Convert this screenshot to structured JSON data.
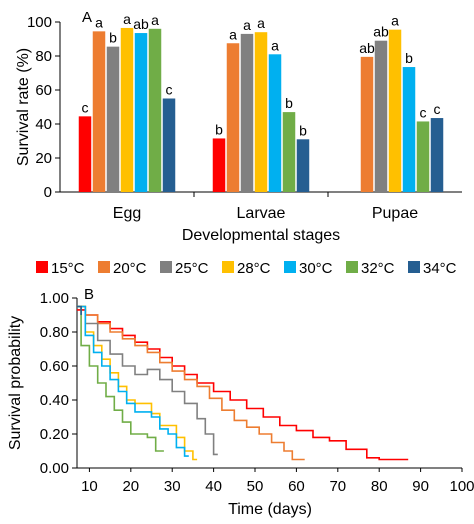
{
  "chart_data": [
    {
      "type": "bar",
      "panel_label": "A",
      "categories": [
        "Egg",
        "Larvae",
        "Pupae"
      ],
      "xlabel": "Developmental stages",
      "ylabel": "Survival rate (%)",
      "ylim": [
        0,
        100
      ],
      "yticks": [
        0,
        20,
        40,
        60,
        80,
        100
      ],
      "series": [
        {
          "name": "15°C",
          "color": "#ff0000",
          "values": [
            44.5,
            31.5,
            null
          ],
          "letters": [
            "c",
            "b",
            ""
          ]
        },
        {
          "name": "20°C",
          "color": "#ed7d31",
          "values": [
            94.5,
            87.5,
            79.5
          ],
          "letters": [
            "a",
            "a",
            "ab"
          ]
        },
        {
          "name": "25°C",
          "color": "#808080",
          "values": [
            85.5,
            93.0,
            89.0
          ],
          "letters": [
            "b",
            "a",
            "ab"
          ]
        },
        {
          "name": "28°C",
          "color": "#ffc000",
          "values": [
            96.5,
            94.0,
            95.5
          ],
          "letters": [
            "a",
            "a",
            "a"
          ]
        },
        {
          "name": "30°C",
          "color": "#00b0f0",
          "values": [
            93.5,
            81.0,
            73.5
          ],
          "letters": [
            "ab",
            "a",
            "b"
          ]
        },
        {
          "name": "32°C",
          "color": "#70ad47",
          "values": [
            96.0,
            47.0,
            41.5
          ],
          "letters": [
            "a",
            "b",
            "c"
          ]
        },
        {
          "name": "34°C",
          "color": "#255e91",
          "values": [
            55.0,
            31.0,
            43.5
          ],
          "letters": [
            "c",
            "b",
            "c"
          ]
        }
      ]
    },
    {
      "type": "line",
      "panel_label": "B",
      "step": true,
      "xlabel": "Time (days)",
      "ylabel": "Survival probability",
      "xlim": [
        7,
        100
      ],
      "ylim": [
        0,
        1
      ],
      "xticks": [
        10,
        20,
        30,
        40,
        50,
        60,
        70,
        80,
        90,
        100
      ],
      "yticks": [
        "0.00",
        "0.20",
        "0.40",
        "0.60",
        "0.80",
        "1.00"
      ],
      "legend_position": "top",
      "series": [
        {
          "name": "15°C",
          "color": "#ff0000",
          "x": [
            7,
            9,
            12,
            15,
            18,
            21,
            24,
            27,
            30,
            33,
            36,
            40,
            44,
            48,
            52,
            56,
            60,
            64,
            68,
            72,
            77,
            80,
            87
          ],
          "y": [
            0.93,
            0.9,
            0.86,
            0.82,
            0.78,
            0.74,
            0.7,
            0.65,
            0.6,
            0.55,
            0.5,
            0.45,
            0.4,
            0.35,
            0.3,
            0.25,
            0.22,
            0.18,
            0.16,
            0.11,
            0.06,
            0.05,
            0.05
          ]
        },
        {
          "name": "20°C",
          "color": "#ed7d31",
          "x": [
            7,
            9,
            12,
            15,
            18,
            21,
            24,
            27,
            30,
            33,
            36,
            39,
            42,
            45,
            48,
            51,
            54,
            57,
            59,
            62
          ],
          "y": [
            0.95,
            0.9,
            0.85,
            0.8,
            0.76,
            0.72,
            0.68,
            0.62,
            0.57,
            0.52,
            0.48,
            0.41,
            0.34,
            0.28,
            0.24,
            0.2,
            0.15,
            0.1,
            0.05,
            0.05
          ]
        },
        {
          "name": "25°C",
          "color": "#808080",
          "x": [
            7,
            9,
            12,
            15,
            18,
            21,
            24,
            27,
            30,
            33,
            36,
            38,
            40,
            41
          ],
          "y": [
            0.95,
            0.85,
            0.75,
            0.67,
            0.6,
            0.55,
            0.58,
            0.52,
            0.45,
            0.38,
            0.29,
            0.2,
            0.08,
            0.08
          ]
        },
        {
          "name": "28°C",
          "color": "#ffc000",
          "x": [
            7,
            9,
            11,
            13,
            15,
            17,
            19,
            21,
            23,
            25,
            27,
            29,
            31,
            33,
            35,
            36
          ],
          "y": [
            0.95,
            0.8,
            0.72,
            0.64,
            0.56,
            0.48,
            0.4,
            0.38,
            0.38,
            0.32,
            0.25,
            0.25,
            0.18,
            0.1,
            0.05,
            0.05
          ]
        },
        {
          "name": "30°C",
          "color": "#00b0f0",
          "x": [
            7,
            9,
            11,
            13,
            15,
            17,
            19,
            21,
            23,
            25,
            27,
            29,
            31,
            33,
            34
          ],
          "y": [
            0.95,
            0.78,
            0.68,
            0.6,
            0.52,
            0.45,
            0.38,
            0.33,
            0.33,
            0.3,
            0.23,
            0.2,
            0.12,
            0.07,
            0.07
          ]
        },
        {
          "name": "32°C",
          "color": "#70ad47",
          "x": [
            7,
            8,
            10,
            12,
            14,
            16,
            18,
            20,
            22,
            24,
            26,
            28
          ],
          "y": [
            0.95,
            0.72,
            0.6,
            0.5,
            0.42,
            0.34,
            0.27,
            0.2,
            0.2,
            0.18,
            0.1,
            0.1
          ]
        },
        {
          "name": "34°C",
          "color": "#255e91",
          "x": [
            7,
            8
          ],
          "y": [
            0.95,
            0.9
          ]
        }
      ]
    }
  ]
}
